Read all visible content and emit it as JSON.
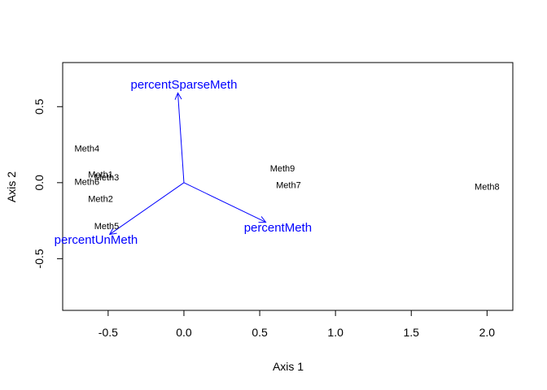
{
  "chart_data": {
    "type": "scatter",
    "subtype": "biplot",
    "title": "",
    "xlabel": "Axis 1",
    "ylabel": "Axis 2",
    "xlim": [
      -0.8,
      2.17
    ],
    "ylim": [
      -0.84,
      0.79
    ],
    "xticks": [
      -0.5,
      0.0,
      0.5,
      1.0,
      1.5,
      2.0
    ],
    "xtick_labels": [
      "-0.5",
      "0.0",
      "0.5",
      "1.0",
      "1.5",
      "2.0"
    ],
    "yticks": [
      -0.5,
      0.0,
      0.5
    ],
    "ytick_labels": [
      "-0.5",
      "0.0",
      "0.5"
    ],
    "grid": false,
    "points": [
      {
        "label": "Meth4",
        "x": -0.64,
        "y": 0.22
      },
      {
        "label": "Meth1",
        "x": -0.55,
        "y": 0.05
      },
      {
        "label": "Meth3",
        "x": -0.51,
        "y": 0.03
      },
      {
        "label": "Meth6",
        "x": -0.64,
        "y": 0.0
      },
      {
        "label": "Meth2",
        "x": -0.55,
        "y": -0.11
      },
      {
        "label": "Meth5",
        "x": -0.51,
        "y": -0.29
      },
      {
        "label": "Meth9",
        "x": 0.65,
        "y": 0.09
      },
      {
        "label": "Meth7",
        "x": 0.69,
        "y": -0.02
      },
      {
        "label": "Meth8",
        "x": 2.0,
        "y": -0.03
      }
    ],
    "vectors": [
      {
        "label": "percentSparseMeth",
        "x": -0.04,
        "y": 0.59
      },
      {
        "label": "percentUnMeth",
        "x": -0.49,
        "y": -0.34
      },
      {
        "label": "percentMeth",
        "x": 0.54,
        "y": -0.26
      }
    ],
    "vector_label_positions": [
      {
        "x": 0.0,
        "y": 0.64
      },
      {
        "x": -0.58,
        "y": -0.38
      },
      {
        "x": 0.62,
        "y": -0.3
      }
    ],
    "colors": {
      "points": "#000000",
      "vectors": "#0000ff",
      "axes": "#000000"
    }
  }
}
